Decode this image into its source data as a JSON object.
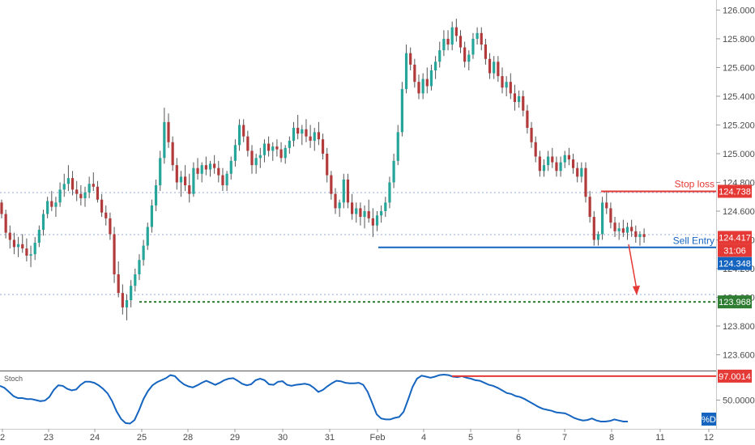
{
  "chart_data": [
    {
      "type": "candlestick",
      "ylim": [
        123.49,
        126.07
      ],
      "y_ticks": [
        "126.000",
        "125.800",
        "125.600",
        "125.400",
        "125.200",
        "125.000",
        "124.800",
        "124.600",
        "124.400",
        "124.200",
        "124.000",
        "123.800",
        "123.600"
      ],
      "x_ticks": [
        "2",
        "23",
        "24",
        "25",
        "28",
        "29",
        "30",
        "31",
        "Feb",
        "4",
        "5",
        "6",
        "7",
        "8",
        "11",
        "12"
      ],
      "colors": {
        "up": "#26a69a",
        "down": "#b23a3a",
        "wick": "#555555"
      },
      "candles": [
        [
          124.66,
          124.68,
          124.55,
          124.58
        ],
        [
          124.58,
          124.61,
          124.41,
          124.45
        ],
        [
          124.45,
          124.5,
          124.34,
          124.4
        ],
        [
          124.4,
          124.45,
          124.3,
          124.35
        ],
        [
          124.35,
          124.42,
          124.28,
          124.37
        ],
        [
          124.37,
          124.44,
          124.31,
          124.34
        ],
        [
          124.34,
          124.41,
          124.25,
          124.29
        ],
        [
          124.29,
          124.36,
          124.21,
          124.3
        ],
        [
          124.3,
          124.42,
          124.26,
          124.38
        ],
        [
          124.38,
          124.5,
          124.35,
          124.47
        ],
        [
          124.47,
          124.61,
          124.43,
          124.58
        ],
        [
          124.58,
          124.7,
          124.55,
          124.67
        ],
        [
          124.67,
          124.74,
          124.6,
          124.63
        ],
        [
          124.63,
          124.7,
          124.56,
          124.66
        ],
        [
          124.66,
          124.8,
          124.63,
          124.75
        ],
        [
          124.75,
          124.86,
          124.7,
          124.79
        ],
        [
          124.79,
          124.92,
          124.74,
          124.83
        ],
        [
          124.83,
          124.88,
          124.71,
          124.75
        ],
        [
          124.75,
          124.81,
          124.67,
          124.72
        ],
        [
          124.72,
          124.78,
          124.64,
          124.69
        ],
        [
          124.69,
          124.77,
          124.63,
          124.73
        ],
        [
          124.73,
          124.84,
          124.69,
          124.79
        ],
        [
          124.79,
          124.87,
          124.74,
          124.77
        ],
        [
          124.77,
          124.81,
          124.66,
          124.68
        ],
        [
          124.68,
          124.72,
          124.56,
          124.59
        ],
        [
          124.59,
          124.64,
          124.5,
          124.55
        ],
        [
          124.55,
          124.59,
          124.4,
          124.44
        ],
        [
          124.44,
          124.49,
          124.1,
          124.16
        ],
        [
          124.16,
          124.25,
          124.0,
          124.03
        ],
        [
          124.03,
          124.09,
          123.88,
          123.93
        ],
        [
          123.93,
          124.02,
          123.84,
          123.98
        ],
        [
          123.98,
          124.12,
          123.93,
          124.08
        ],
        [
          124.08,
          124.2,
          124.04,
          124.16
        ],
        [
          124.16,
          124.3,
          124.12,
          124.26
        ],
        [
          124.26,
          124.4,
          124.22,
          124.36
        ],
        [
          124.36,
          124.52,
          124.33,
          124.49
        ],
        [
          124.49,
          124.68,
          124.45,
          124.64
        ],
        [
          124.64,
          124.82,
          124.6,
          124.78
        ],
        [
          124.78,
          125.02,
          124.74,
          124.97
        ],
        [
          124.97,
          125.32,
          124.93,
          125.22
        ],
        [
          125.22,
          125.28,
          125.04,
          125.08
        ],
        [
          125.08,
          125.12,
          124.88,
          124.92
        ],
        [
          124.92,
          124.97,
          124.75,
          124.8
        ],
        [
          124.8,
          124.88,
          124.7,
          124.84
        ],
        [
          124.84,
          124.92,
          124.74,
          124.78
        ],
        [
          124.78,
          124.86,
          124.66,
          124.72
        ],
        [
          124.72,
          124.94,
          124.7,
          124.9
        ],
        [
          124.9,
          124.97,
          124.82,
          124.86
        ],
        [
          124.86,
          124.94,
          124.8,
          124.92
        ],
        [
          124.92,
          124.98,
          124.85,
          124.89
        ],
        [
          124.89,
          124.95,
          124.84,
          124.93
        ],
        [
          124.93,
          124.99,
          124.86,
          124.9
        ],
        [
          124.9,
          124.95,
          124.8,
          124.85
        ],
        [
          124.85,
          124.9,
          124.74,
          124.78
        ],
        [
          124.78,
          124.88,
          124.74,
          124.86
        ],
        [
          124.86,
          124.98,
          124.82,
          124.95
        ],
        [
          124.95,
          125.1,
          124.91,
          125.06
        ],
        [
          125.06,
          125.24,
          125.02,
          125.2
        ],
        [
          125.2,
          125.24,
          125.08,
          125.12
        ],
        [
          125.12,
          125.16,
          124.98,
          125.02
        ],
        [
          125.02,
          125.06,
          124.86,
          124.92
        ],
        [
          124.92,
          125.0,
          124.86,
          124.97
        ],
        [
          124.97,
          125.04,
          124.9,
          124.99
        ],
        [
          124.99,
          125.1,
          124.94,
          125.07
        ],
        [
          125.07,
          125.12,
          124.98,
          125.02
        ],
        [
          125.02,
          125.08,
          124.95,
          125.05
        ],
        [
          125.05,
          125.1,
          124.98,
          125.03
        ],
        [
          125.03,
          125.08,
          124.94,
          124.97
        ],
        [
          124.97,
          125.06,
          124.93,
          125.04
        ],
        [
          125.04,
          125.12,
          125.0,
          125.09
        ],
        [
          125.09,
          125.22,
          125.05,
          125.18
        ],
        [
          125.18,
          125.27,
          125.1,
          125.14
        ],
        [
          125.14,
          125.2,
          125.06,
          125.17
        ],
        [
          125.17,
          125.24,
          125.08,
          125.12
        ],
        [
          125.12,
          125.2,
          125.04,
          125.09
        ],
        [
          125.09,
          125.18,
          125.02,
          125.15
        ],
        [
          125.15,
          125.22,
          125.06,
          125.1
        ],
        [
          125.1,
          125.14,
          124.96,
          125.0
        ],
        [
          125.0,
          125.04,
          124.8,
          124.85
        ],
        [
          124.85,
          124.88,
          124.68,
          124.72
        ],
        [
          124.72,
          124.76,
          124.58,
          124.62
        ],
        [
          124.62,
          124.68,
          124.56,
          124.66
        ],
        [
          124.66,
          124.86,
          124.62,
          124.82
        ],
        [
          124.82,
          124.86,
          124.62,
          124.66
        ],
        [
          124.66,
          124.72,
          124.54,
          124.58
        ],
        [
          124.58,
          124.66,
          124.52,
          124.62
        ],
        [
          124.62,
          124.66,
          124.5,
          124.56
        ],
        [
          124.56,
          124.64,
          124.48,
          124.6
        ],
        [
          124.6,
          124.68,
          124.52,
          124.55
        ],
        [
          124.55,
          124.62,
          124.42,
          124.5
        ],
        [
          124.5,
          124.6,
          124.46,
          124.57
        ],
        [
          124.57,
          124.64,
          124.52,
          124.6
        ],
        [
          124.6,
          124.7,
          124.56,
          124.66
        ],
        [
          124.66,
          124.84,
          124.62,
          124.8
        ],
        [
          124.8,
          125.0,
          124.76,
          124.95
        ],
        [
          124.95,
          125.2,
          124.92,
          125.15
        ],
        [
          125.15,
          125.5,
          125.12,
          125.45
        ],
        [
          125.45,
          125.76,
          125.42,
          125.7
        ],
        [
          125.7,
          125.74,
          125.58,
          125.62
        ],
        [
          125.62,
          125.66,
          125.46,
          125.5
        ],
        [
          125.5,
          125.55,
          125.38,
          125.42
        ],
        [
          125.42,
          125.56,
          125.38,
          125.52
        ],
        [
          125.52,
          125.6,
          125.42,
          125.47
        ],
        [
          125.47,
          125.62,
          125.44,
          125.58
        ],
        [
          125.58,
          125.68,
          125.52,
          125.64
        ],
        [
          125.64,
          125.78,
          125.6,
          125.72
        ],
        [
          125.72,
          125.86,
          125.68,
          125.8
        ],
        [
          125.8,
          125.86,
          125.72,
          125.76
        ],
        [
          125.76,
          125.92,
          125.72,
          125.88
        ],
        [
          125.88,
          125.94,
          125.78,
          125.82
        ],
        [
          125.82,
          125.86,
          125.7,
          125.74
        ],
        [
          125.74,
          125.78,
          125.6,
          125.64
        ],
        [
          125.64,
          125.72,
          125.58,
          125.69
        ],
        [
          125.69,
          125.84,
          125.66,
          125.8
        ],
        [
          125.8,
          125.88,
          125.76,
          125.84
        ],
        [
          125.84,
          125.88,
          125.72,
          125.76
        ],
        [
          125.76,
          125.8,
          125.62,
          125.66
        ],
        [
          125.66,
          125.7,
          125.52,
          125.56
        ],
        [
          125.56,
          125.68,
          125.52,
          125.64
        ],
        [
          125.64,
          125.68,
          125.5,
          125.54
        ],
        [
          125.54,
          125.6,
          125.42,
          125.46
        ],
        [
          125.46,
          125.54,
          125.4,
          125.5
        ],
        [
          125.5,
          125.56,
          125.38,
          125.42
        ],
        [
          125.42,
          125.48,
          125.3,
          125.36
        ],
        [
          125.36,
          125.44,
          125.32,
          125.4
        ],
        [
          125.4,
          125.44,
          125.26,
          125.3
        ],
        [
          125.3,
          125.34,
          125.14,
          125.18
        ],
        [
          125.18,
          125.22,
          125.04,
          125.08
        ],
        [
          125.08,
          125.12,
          124.94,
          124.98
        ],
        [
          124.98,
          125.02,
          124.84,
          124.88
        ],
        [
          124.88,
          124.96,
          124.84,
          124.92
        ],
        [
          124.92,
          125.02,
          124.88,
          124.98
        ],
        [
          124.98,
          125.04,
          124.9,
          124.94
        ],
        [
          124.94,
          124.98,
          124.84,
          124.88
        ],
        [
          124.88,
          124.98,
          124.84,
          124.94
        ],
        [
          124.94,
          125.02,
          124.9,
          124.99
        ],
        [
          124.99,
          125.04,
          124.92,
          124.96
        ],
        [
          124.96,
          125.0,
          124.86,
          124.9
        ],
        [
          124.9,
          124.94,
          124.8,
          124.84
        ],
        [
          124.84,
          124.94,
          124.8,
          124.9
        ],
        [
          124.9,
          124.94,
          124.66,
          124.7
        ],
        [
          124.7,
          124.74,
          124.52,
          124.56
        ],
        [
          124.56,
          124.6,
          124.36,
          124.4
        ],
        [
          124.4,
          124.46,
          124.36,
          124.44
        ],
        [
          124.44,
          124.7,
          124.4,
          124.66
        ],
        [
          124.66,
          124.74,
          124.58,
          124.62
        ],
        [
          124.62,
          124.66,
          124.48,
          124.52
        ],
        [
          124.52,
          124.56,
          124.42,
          124.46
        ],
        [
          124.46,
          124.52,
          124.4,
          124.48
        ],
        [
          124.48,
          124.54,
          124.42,
          124.45
        ],
        [
          124.45,
          124.52,
          124.4,
          124.49
        ],
        [
          124.49,
          124.54,
          124.42,
          124.46
        ],
        [
          124.46,
          124.5,
          124.38,
          124.42
        ],
        [
          124.42,
          124.46,
          124.36,
          124.44
        ],
        [
          124.44,
          124.48,
          124.38,
          124.42
        ]
      ],
      "levels": [
        {
          "label": "Stop loss",
          "value": 124.738,
          "color": "#e53935"
        },
        {
          "label": "Sell Entry",
          "value": 124.348,
          "color": "#1565c0"
        },
        {
          "label": "",
          "value": 123.968,
          "color": "#2e7d32"
        }
      ],
      "price_tags": [
        {
          "text": "124.738",
          "color": "#e53935"
        },
        {
          "text": "124.417",
          "color": "#e53935"
        },
        {
          "text": "31:06",
          "color": "#e53935"
        },
        {
          "text": "124.348",
          "color": "#1565c0"
        },
        {
          "text": "123.968",
          "color": "#2e7d32"
        }
      ]
    },
    {
      "type": "line",
      "title": "Stoch",
      "y_ticks": [
        "50.0000"
      ],
      "ylim": [
        0,
        100
      ],
      "level_tag": {
        "text": "97.0014",
        "value": 97.0014,
        "color": "#e53935"
      },
      "series_tag": {
        "text": "%D",
        "color": "#1565c0"
      },
      "values": [
        78,
        74,
        66,
        58,
        54,
        54,
        52,
        52,
        50,
        48,
        49,
        56,
        70,
        79,
        78,
        72,
        69,
        71,
        80,
        86,
        86,
        84,
        79,
        72,
        63,
        48,
        28,
        13,
        5,
        4,
        11,
        30,
        52,
        68,
        79,
        85,
        89,
        93,
        99,
        97,
        88,
        81,
        77,
        75,
        79,
        84,
        88,
        84,
        80,
        84,
        89,
        92,
        93,
        88,
        82,
        79,
        81,
        89,
        92,
        89,
        81,
        80,
        86,
        87,
        80,
        78,
        80,
        81,
        82,
        80,
        74,
        66,
        70,
        77,
        83,
        88,
        87,
        84,
        83,
        83,
        84,
        80,
        66,
        44,
        22,
        14,
        12,
        12,
        15,
        17,
        27,
        51,
        76,
        92,
        98,
        96,
        94,
        96,
        99,
        100,
        99,
        96,
        95,
        97,
        94,
        92,
        89,
        88,
        84,
        80,
        78,
        74,
        69,
        64,
        62,
        58,
        56,
        52,
        47,
        42,
        37,
        33,
        31,
        29,
        26,
        25,
        24,
        20,
        15,
        12,
        10,
        11,
        14,
        10,
        8,
        8,
        9,
        12,
        10,
        8,
        8
      ]
    }
  ]
}
